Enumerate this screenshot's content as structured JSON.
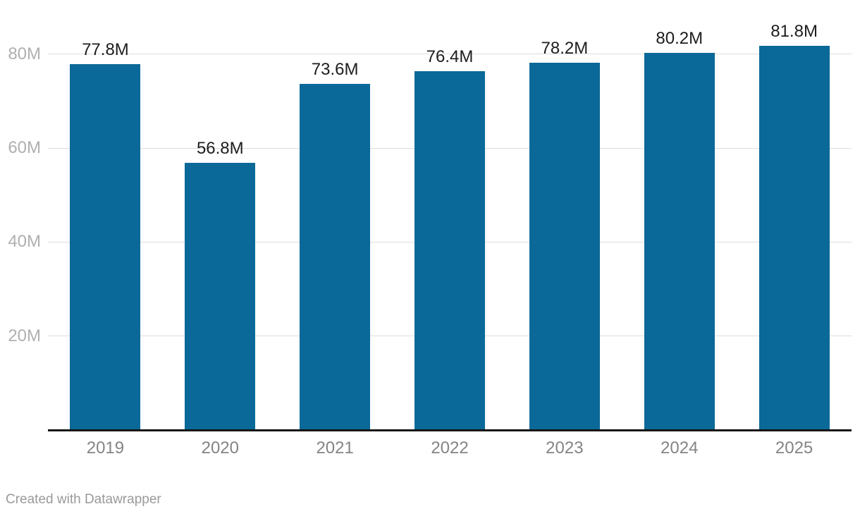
{
  "chart_data": {
    "type": "bar",
    "categories": [
      "2019",
      "2020",
      "2021",
      "2022",
      "2023",
      "2024",
      "2025"
    ],
    "values": [
      77.8,
      56.8,
      73.6,
      76.4,
      78.2,
      80.2,
      81.8
    ],
    "value_labels": [
      "77.8M",
      "56.8M",
      "73.6M",
      "76.4M",
      "78.2M",
      "80.2M",
      "81.8M"
    ],
    "title": "",
    "xlabel": "",
    "ylabel": "",
    "ylim": [
      0,
      91.5
    ],
    "yticks": [
      20,
      40,
      60,
      80
    ],
    "ytick_labels": [
      "20M",
      "40M",
      "60M",
      "80M"
    ],
    "grid": true,
    "legend": false,
    "bar_color": "#0a6998"
  },
  "colors": {
    "bar": "#0a6998",
    "gridline": "#dddddd",
    "axis_line": "#161616",
    "value_label": "#1d1d1d",
    "y_tick_label": "#b0b0b0",
    "x_tick_label": "#848484",
    "credit_text": "#9a9a9a"
  },
  "footer": {
    "credit": "Created with Datawrapper"
  }
}
